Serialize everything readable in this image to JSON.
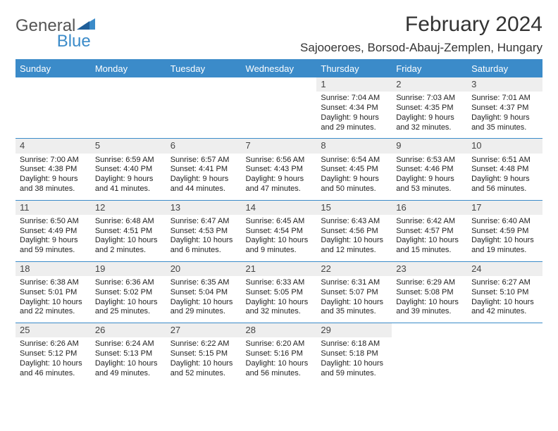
{
  "brand": {
    "word1": "General",
    "word2": "Blue",
    "color1": "#6a6a6a",
    "color2": "#3b8bc9"
  },
  "title": "February 2024",
  "location": "Sajooeroes, Borsod-Abauj-Zemplen, Hungary",
  "colors": {
    "header_bg": "#3b8bc9",
    "header_text": "#ffffff",
    "daynum_bg": "#eeeeee",
    "rule": "#3b8bc9",
    "text": "#222222",
    "background": "#ffffff"
  },
  "fonts": {
    "title_size": 30,
    "location_size": 17,
    "dayhead_size": 13,
    "body_size": 11
  },
  "day_headers": [
    "Sunday",
    "Monday",
    "Tuesday",
    "Wednesday",
    "Thursday",
    "Friday",
    "Saturday"
  ],
  "weeks": [
    [
      null,
      null,
      null,
      null,
      {
        "n": "1",
        "sunrise": "7:04 AM",
        "sunset": "4:34 PM",
        "dl": "9 hours and 29 minutes."
      },
      {
        "n": "2",
        "sunrise": "7:03 AM",
        "sunset": "4:35 PM",
        "dl": "9 hours and 32 minutes."
      },
      {
        "n": "3",
        "sunrise": "7:01 AM",
        "sunset": "4:37 PM",
        "dl": "9 hours and 35 minutes."
      }
    ],
    [
      {
        "n": "4",
        "sunrise": "7:00 AM",
        "sunset": "4:38 PM",
        "dl": "9 hours and 38 minutes."
      },
      {
        "n": "5",
        "sunrise": "6:59 AM",
        "sunset": "4:40 PM",
        "dl": "9 hours and 41 minutes."
      },
      {
        "n": "6",
        "sunrise": "6:57 AM",
        "sunset": "4:41 PM",
        "dl": "9 hours and 44 minutes."
      },
      {
        "n": "7",
        "sunrise": "6:56 AM",
        "sunset": "4:43 PM",
        "dl": "9 hours and 47 minutes."
      },
      {
        "n": "8",
        "sunrise": "6:54 AM",
        "sunset": "4:45 PM",
        "dl": "9 hours and 50 minutes."
      },
      {
        "n": "9",
        "sunrise": "6:53 AM",
        "sunset": "4:46 PM",
        "dl": "9 hours and 53 minutes."
      },
      {
        "n": "10",
        "sunrise": "6:51 AM",
        "sunset": "4:48 PM",
        "dl": "9 hours and 56 minutes."
      }
    ],
    [
      {
        "n": "11",
        "sunrise": "6:50 AM",
        "sunset": "4:49 PM",
        "dl": "9 hours and 59 minutes."
      },
      {
        "n": "12",
        "sunrise": "6:48 AM",
        "sunset": "4:51 PM",
        "dl": "10 hours and 2 minutes."
      },
      {
        "n": "13",
        "sunrise": "6:47 AM",
        "sunset": "4:53 PM",
        "dl": "10 hours and 6 minutes."
      },
      {
        "n": "14",
        "sunrise": "6:45 AM",
        "sunset": "4:54 PM",
        "dl": "10 hours and 9 minutes."
      },
      {
        "n": "15",
        "sunrise": "6:43 AM",
        "sunset": "4:56 PM",
        "dl": "10 hours and 12 minutes."
      },
      {
        "n": "16",
        "sunrise": "6:42 AM",
        "sunset": "4:57 PM",
        "dl": "10 hours and 15 minutes."
      },
      {
        "n": "17",
        "sunrise": "6:40 AM",
        "sunset": "4:59 PM",
        "dl": "10 hours and 19 minutes."
      }
    ],
    [
      {
        "n": "18",
        "sunrise": "6:38 AM",
        "sunset": "5:01 PM",
        "dl": "10 hours and 22 minutes."
      },
      {
        "n": "19",
        "sunrise": "6:36 AM",
        "sunset": "5:02 PM",
        "dl": "10 hours and 25 minutes."
      },
      {
        "n": "20",
        "sunrise": "6:35 AM",
        "sunset": "5:04 PM",
        "dl": "10 hours and 29 minutes."
      },
      {
        "n": "21",
        "sunrise": "6:33 AM",
        "sunset": "5:05 PM",
        "dl": "10 hours and 32 minutes."
      },
      {
        "n": "22",
        "sunrise": "6:31 AM",
        "sunset": "5:07 PM",
        "dl": "10 hours and 35 minutes."
      },
      {
        "n": "23",
        "sunrise": "6:29 AM",
        "sunset": "5:08 PM",
        "dl": "10 hours and 39 minutes."
      },
      {
        "n": "24",
        "sunrise": "6:27 AM",
        "sunset": "5:10 PM",
        "dl": "10 hours and 42 minutes."
      }
    ],
    [
      {
        "n": "25",
        "sunrise": "6:26 AM",
        "sunset": "5:12 PM",
        "dl": "10 hours and 46 minutes."
      },
      {
        "n": "26",
        "sunrise": "6:24 AM",
        "sunset": "5:13 PM",
        "dl": "10 hours and 49 minutes."
      },
      {
        "n": "27",
        "sunrise": "6:22 AM",
        "sunset": "5:15 PM",
        "dl": "10 hours and 52 minutes."
      },
      {
        "n": "28",
        "sunrise": "6:20 AM",
        "sunset": "5:16 PM",
        "dl": "10 hours and 56 minutes."
      },
      {
        "n": "29",
        "sunrise": "6:18 AM",
        "sunset": "5:18 PM",
        "dl": "10 hours and 59 minutes."
      },
      null,
      null
    ]
  ],
  "labels": {
    "sunrise": "Sunrise: ",
    "sunset": "Sunset: ",
    "daylight": "Daylight: "
  }
}
